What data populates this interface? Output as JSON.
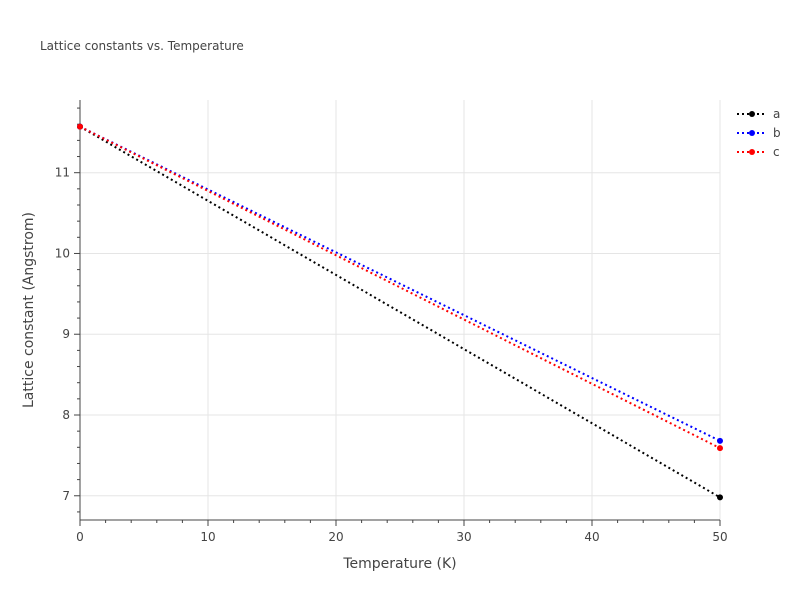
{
  "chart_data": {
    "type": "line",
    "title": "Lattice constants vs. Temperature",
    "xlabel": "Temperature (K)",
    "ylabel": "Lattice constant (Angstrom)",
    "xlim": [
      0,
      50
    ],
    "ylim": [
      6.7,
      11.9
    ],
    "xticks": [
      0,
      10,
      20,
      30,
      40,
      50
    ],
    "yticks": [
      7,
      8,
      9,
      10,
      11
    ],
    "grid": true,
    "legend_position": "top-right",
    "series": [
      {
        "name": "a",
        "color": "#000000",
        "x": [
          0,
          50
        ],
        "y": [
          11.57,
          6.98
        ]
      },
      {
        "name": "b",
        "color": "#0000ff",
        "x": [
          0,
          50
        ],
        "y": [
          11.57,
          7.68
        ]
      },
      {
        "name": "c",
        "color": "#ff0000",
        "x": [
          0,
          50
        ],
        "y": [
          11.57,
          7.59
        ]
      }
    ]
  }
}
